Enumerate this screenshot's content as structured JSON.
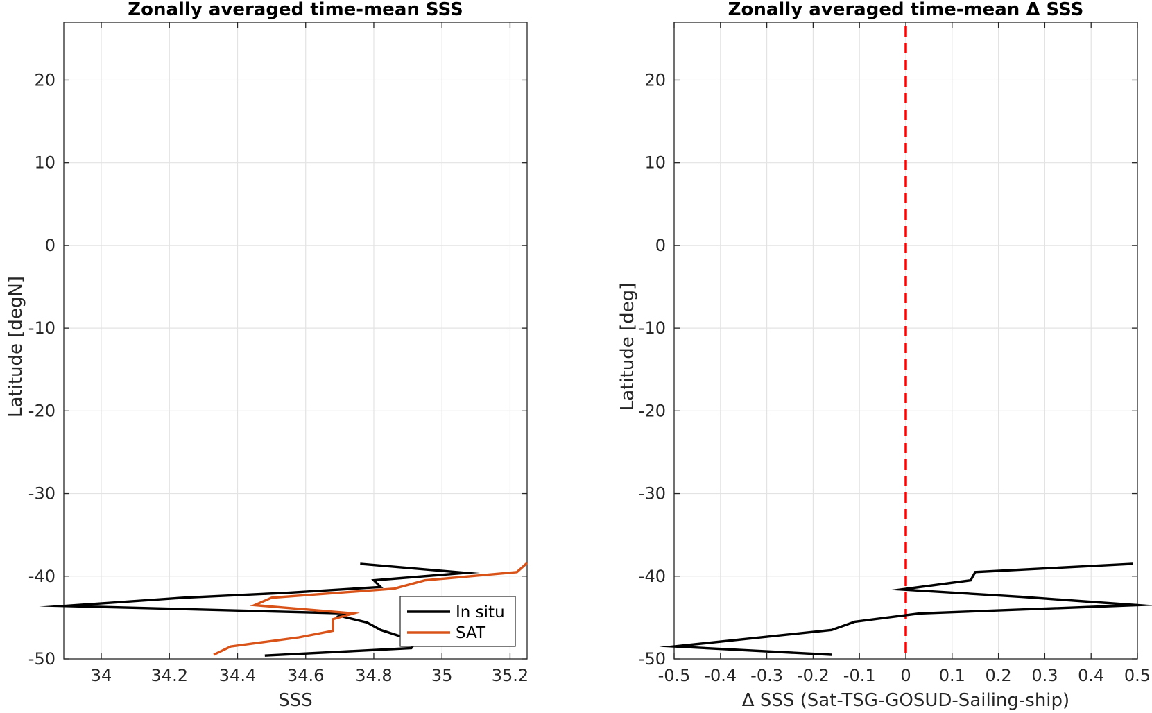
{
  "chart_data": [
    {
      "type": "line",
      "title": "Zonally averaged time-mean SSS",
      "xlabel": "SSS",
      "ylabel": "Latitude [degN]",
      "xlim": [
        33.89,
        35.25
      ],
      "ylim": [
        -50,
        27
      ],
      "xticks": [
        34,
        34.2,
        34.4,
        34.6,
        34.8,
        35,
        35.2
      ],
      "xtick_labels": [
        "34",
        "34.2",
        "34.4",
        "34.6",
        "34.8",
        "35",
        "35.2"
      ],
      "yticks": [
        -50,
        -40,
        -30,
        -20,
        -10,
        0,
        10,
        20
      ],
      "ytick_labels": [
        "-50",
        "-40",
        "-30",
        "-20",
        "-10",
        "0",
        "10",
        "20"
      ],
      "grid": true,
      "legend": {
        "placement": "bottom-right",
        "entries": [
          "In situ",
          "SAT"
        ]
      },
      "series": [
        {
          "name": "In situ",
          "color": "#000000",
          "points": [
            [
              34.76,
              -38.5
            ],
            [
              35.07,
              -39.6
            ],
            [
              34.8,
              -40.5
            ],
            [
              34.82,
              -41.3
            ],
            [
              34.55,
              -42.0
            ],
            [
              34.24,
              -42.6
            ],
            [
              33.89,
              -43.6
            ],
            [
              34.72,
              -44.5
            ],
            [
              34.7,
              -44.8
            ],
            [
              34.78,
              -45.6
            ],
            [
              34.82,
              -46.5
            ],
            [
              34.88,
              -47.3
            ],
            [
              34.93,
              -47.6
            ],
            [
              34.91,
              -48.7
            ],
            [
              34.48,
              -49.6
            ]
          ]
        },
        {
          "name": "SAT",
          "color": "#d95319",
          "points": [
            [
              35.25,
              -38.4
            ],
            [
              35.22,
              -39.5
            ],
            [
              34.95,
              -40.5
            ],
            [
              34.86,
              -41.5
            ],
            [
              34.5,
              -42.6
            ],
            [
              34.45,
              -43.5
            ],
            [
              34.74,
              -44.5
            ],
            [
              34.68,
              -45.2
            ],
            [
              34.68,
              -46.6
            ],
            [
              34.58,
              -47.4
            ],
            [
              34.38,
              -48.5
            ],
            [
              34.33,
              -49.5
            ]
          ]
        }
      ]
    },
    {
      "type": "line",
      "title": "Zonally averaged time-mean Δ SSS",
      "xlabel": "Δ SSS (Sat-TSG-GOSUD-Sailing-ship)",
      "ylabel": "Latitude [deg]",
      "xlim": [
        -0.5,
        0.5
      ],
      "ylim": [
        -50,
        27
      ],
      "xticks": [
        -0.5,
        -0.4,
        -0.3,
        -0.2,
        -0.1,
        0,
        0.1,
        0.2,
        0.3,
        0.4,
        0.5
      ],
      "xtick_labels": [
        "-0.5",
        "-0.4",
        "-0.3",
        "-0.2",
        "-0.1",
        "0",
        "0.1",
        "0.2",
        "0.3",
        "0.4",
        "0.5"
      ],
      "yticks": [
        -50,
        -40,
        -30,
        -20,
        -10,
        0,
        10,
        20
      ],
      "ytick_labels": [
        "-50",
        "-40",
        "-30",
        "-20",
        "-10",
        "0",
        "10",
        "20"
      ],
      "grid": true,
      "reference_line": {
        "x": 0,
        "color": "#ff0000",
        "style": "dashed"
      },
      "series": [
        {
          "name": "",
          "color": "#000000",
          "points": [
            [
              0.49,
              -38.5
            ],
            [
              0.15,
              -39.5
            ],
            [
              0.14,
              -40.5
            ],
            [
              -0.01,
              -41.6
            ],
            [
              0.25,
              -42.5
            ],
            [
              0.5,
              -43.5
            ],
            [
              0.03,
              -44.5
            ],
            [
              -0.11,
              -45.5
            ],
            [
              -0.16,
              -46.5
            ],
            [
              -0.33,
              -47.5
            ],
            [
              -0.5,
              -48.5
            ],
            [
              -0.16,
              -49.5
            ]
          ]
        }
      ]
    }
  ]
}
